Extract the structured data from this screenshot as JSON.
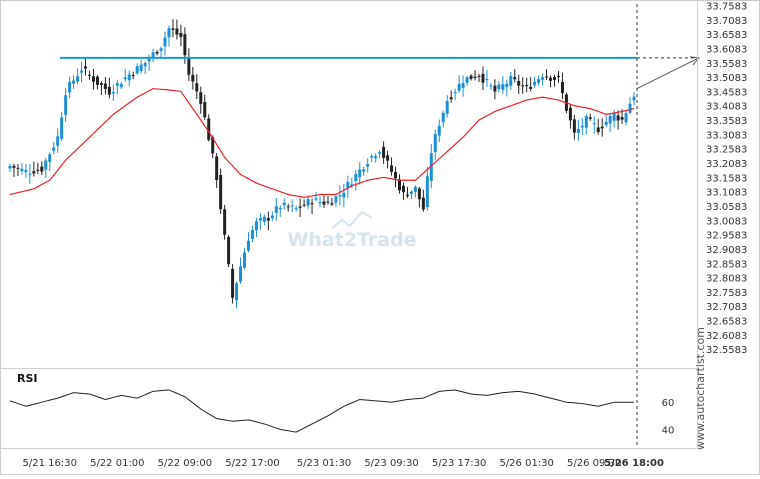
{
  "chart_data": [
    {
      "type": "candlestick",
      "title": "",
      "xlabel": "",
      "ylabel": "",
      "ylim": [
        32.5083,
        33.7583
      ],
      "y_ticks": [
        "33.7583",
        "33.7083",
        "33.6583",
        "33.6083",
        "33.5583",
        "33.5083",
        "33.4583",
        "33.4083",
        "33.3583",
        "33.3083",
        "33.2583",
        "33.2083",
        "33.1583",
        "33.1083",
        "33.0583",
        "33.0083",
        "32.9583",
        "32.9083",
        "32.8583",
        "32.8083",
        "32.7583",
        "32.7083",
        "32.6583",
        "32.6083",
        "32.5583"
      ],
      "x_ticks": [
        "5/21 16:30",
        "5/22 01:00",
        "5/22 09:00",
        "5/22 17:00",
        "5/23 01:30",
        "5/23 09:30",
        "5/23 17:30",
        "5/26 01:30",
        "5/26 09:30",
        "5/26 18:00"
      ],
      "x_ticks_bold": [
        "5/26 18:00"
      ],
      "resistance_level": 33.5773,
      "moving_average_color": "#e8232a",
      "resistance_color": "#1b9ad6",
      "bull_color": "#1e8fd6",
      "bear_color": "#222222",
      "series": [
        {
          "anchors": [
            [
              0,
              33.2
            ],
            [
              4,
              33.18
            ],
            [
              8,
              33.19
            ],
            [
              12,
              33.3
            ],
            [
              14,
              33.46
            ],
            [
              18,
              33.54
            ],
            [
              22,
              33.49
            ],
            [
              25,
              33.46
            ],
            [
              30,
              33.52
            ],
            [
              34,
              33.56
            ],
            [
              38,
              33.62
            ],
            [
              40,
              33.68
            ],
            [
              43,
              33.65
            ],
            [
              45,
              33.52
            ],
            [
              48,
              33.43
            ],
            [
              50,
              33.3
            ],
            [
              52,
              33.16
            ],
            [
              54,
              32.95
            ],
            [
              56,
              32.74
            ],
            [
              58,
              32.85
            ],
            [
              60,
              32.95
            ],
            [
              62,
              33.0
            ],
            [
              65,
              33.02
            ],
            [
              68,
              33.06
            ],
            [
              72,
              33.05
            ],
            [
              76,
              33.08
            ],
            [
              80,
              33.07
            ],
            [
              83,
              33.1
            ],
            [
              86,
              33.15
            ],
            [
              90,
              33.22
            ],
            [
              93,
              33.26
            ],
            [
              96,
              33.18
            ],
            [
              99,
              33.1
            ],
            [
              102,
              33.12
            ],
            [
              104,
              33.05
            ],
            [
              106,
              33.25
            ],
            [
              108,
              33.35
            ],
            [
              110,
              33.43
            ],
            [
              114,
              33.5
            ],
            [
              118,
              33.52
            ],
            [
              122,
              33.46
            ],
            [
              126,
              33.5
            ],
            [
              130,
              33.47
            ],
            [
              134,
              33.52
            ],
            [
              138,
              33.5
            ],
            [
              140,
              33.4
            ],
            [
              142,
              33.31
            ],
            [
              145,
              33.36
            ],
            [
              148,
              33.33
            ],
            [
              152,
              33.38
            ],
            [
              154,
              33.36
            ],
            [
              157,
              33.45
            ]
          ]
        }
      ],
      "moving_average": {
        "anchors": [
          [
            0,
            33.1
          ],
          [
            6,
            33.12
          ],
          [
            10,
            33.15
          ],
          [
            14,
            33.22
          ],
          [
            20,
            33.3
          ],
          [
            26,
            33.38
          ],
          [
            32,
            33.44
          ],
          [
            36,
            33.47
          ],
          [
            40,
            33.465
          ],
          [
            43,
            33.46
          ],
          [
            46,
            33.4
          ],
          [
            50,
            33.32
          ],
          [
            54,
            33.23
          ],
          [
            58,
            33.17
          ],
          [
            62,
            33.14
          ],
          [
            66,
            33.12
          ],
          [
            70,
            33.1
          ],
          [
            74,
            33.09
          ],
          [
            78,
            33.1
          ],
          [
            82,
            33.1
          ],
          [
            86,
            33.13
          ],
          [
            90,
            33.15
          ],
          [
            94,
            33.16
          ],
          [
            98,
            33.15
          ],
          [
            102,
            33.15
          ],
          [
            106,
            33.2
          ],
          [
            110,
            33.25
          ],
          [
            114,
            33.3
          ],
          [
            118,
            33.36
          ],
          [
            122,
            33.39
          ],
          [
            126,
            33.41
          ],
          [
            130,
            33.43
          ],
          [
            134,
            33.44
          ],
          [
            138,
            33.43
          ],
          [
            142,
            33.41
          ],
          [
            146,
            33.4
          ],
          [
            150,
            33.38
          ],
          [
            154,
            33.39
          ],
          [
            157,
            33.4
          ]
        ]
      }
    },
    {
      "type": "line",
      "title": "RSI",
      "ylim": [
        30,
        80
      ],
      "y_ticks": [
        "60",
        "40"
      ],
      "series": [
        {
          "name": "RSI",
          "anchors": [
            [
              0,
              61
            ],
            [
              4,
              57
            ],
            [
              8,
              60
            ],
            [
              12,
              63
            ],
            [
              16,
              67
            ],
            [
              20,
              66
            ],
            [
              24,
              62
            ],
            [
              28,
              65
            ],
            [
              32,
              63
            ],
            [
              36,
              68
            ],
            [
              40,
              69
            ],
            [
              44,
              64
            ],
            [
              48,
              55
            ],
            [
              52,
              48
            ],
            [
              56,
              46
            ],
            [
              60,
              47
            ],
            [
              64,
              44
            ],
            [
              68,
              40
            ],
            [
              72,
              38
            ],
            [
              76,
              44
            ],
            [
              80,
              50
            ],
            [
              84,
              57
            ],
            [
              88,
              62
            ],
            [
              92,
              61
            ],
            [
              96,
              60
            ],
            [
              100,
              62
            ],
            [
              104,
              63
            ],
            [
              108,
              68
            ],
            [
              112,
              69
            ],
            [
              116,
              66
            ],
            [
              120,
              65
            ],
            [
              124,
              67
            ],
            [
              128,
              68
            ],
            [
              132,
              66
            ],
            [
              136,
              63
            ],
            [
              140,
              60
            ],
            [
              144,
              59
            ],
            [
              148,
              57
            ],
            [
              152,
              60
            ],
            [
              157,
              60
            ]
          ]
        }
      ]
    }
  ],
  "watermark": "What2Trade",
  "side_label": "www.autochartist.com"
}
